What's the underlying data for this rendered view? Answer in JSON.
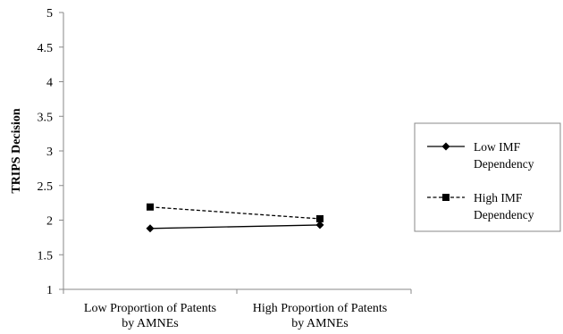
{
  "chart_data": {
    "type": "line",
    "categories": [
      [
        "Low Proportion of Patents",
        "by AMNEs"
      ],
      [
        "High Proportion of Patents",
        "by AMNEs"
      ]
    ],
    "ylabel": "TRIPS Decision",
    "xlabel": "",
    "ylim": [
      1,
      5
    ],
    "yticks": [
      "1",
      "1.5",
      "2",
      "2.5",
      "3",
      "3.5",
      "4",
      "4.5",
      "5"
    ],
    "grid": false,
    "legend_position": "right",
    "series": [
      {
        "name": [
          "Low IMF",
          "Dependency"
        ],
        "values": [
          1.88,
          1.93
        ],
        "marker": "diamond",
        "line": "solid",
        "color": "#000000"
      },
      {
        "name": [
          "High IMF",
          "Dependency"
        ],
        "values": [
          2.19,
          2.02
        ],
        "marker": "square",
        "line": "dashed",
        "color": "#000000"
      }
    ]
  }
}
